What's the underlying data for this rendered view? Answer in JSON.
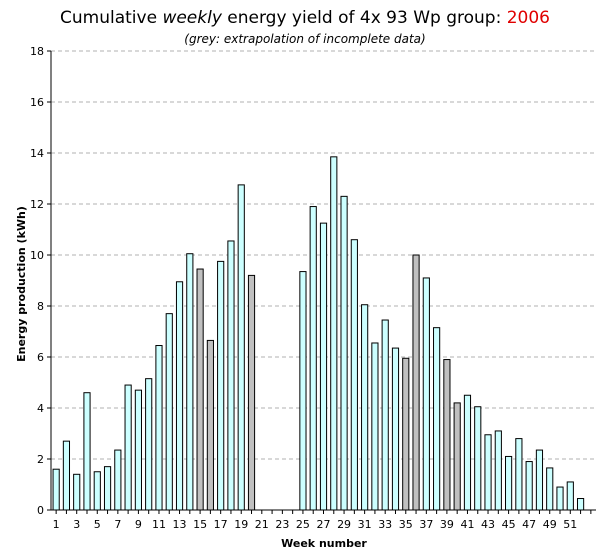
{
  "chart_data": {
    "type": "bar",
    "title_parts": {
      "prefix": "Cumulative",
      "emphasis": "weekly",
      "suffix": "energy yield of 4x 93 Wp group:",
      "year": "2006"
    },
    "subtitle": "(grey: extrapolation of incomplete data)",
    "xlabel": "Week number",
    "ylabel": "Energy production (kWh)",
    "ylim": [
      0,
      18
    ],
    "yticks": [
      0,
      2,
      4,
      6,
      8,
      10,
      12,
      14,
      16,
      18
    ],
    "xtick_labels": [
      "1",
      "3",
      "5",
      "7",
      "9",
      "11",
      "13",
      "15",
      "17",
      "19",
      "21",
      "23",
      "25",
      "27",
      "29",
      "31",
      "33",
      "35",
      "37",
      "39",
      "41",
      "43",
      "45",
      "47",
      "49",
      "51"
    ],
    "grid": true,
    "colors": {
      "complete": "#ccffff",
      "extrapolated": "#c0c0c0",
      "bar_edge": "#000000",
      "grid": "#b0b0b0",
      "year": "#e00000"
    },
    "categories": [
      1,
      2,
      3,
      4,
      5,
      6,
      7,
      8,
      9,
      10,
      11,
      12,
      13,
      14,
      15,
      16,
      17,
      18,
      19,
      20,
      21,
      22,
      23,
      24,
      25,
      26,
      27,
      28,
      29,
      30,
      31,
      32,
      33,
      34,
      35,
      36,
      37,
      38,
      39,
      40,
      41,
      42,
      43,
      44,
      45,
      46,
      47,
      48,
      49,
      50,
      51,
      52,
      53
    ],
    "values": [
      1.6,
      2.7,
      1.4,
      4.6,
      1.5,
      1.7,
      2.35,
      4.9,
      4.7,
      5.15,
      6.45,
      7.7,
      8.95,
      10.05,
      9.45,
      6.65,
      9.75,
      10.55,
      12.75,
      9.2,
      0,
      0,
      0,
      0,
      9.35,
      11.9,
      11.25,
      13.85,
      12.3,
      10.6,
      8.05,
      6.55,
      7.45,
      6.35,
      5.95,
      10.0,
      9.1,
      7.15,
      5.9,
      4.2,
      4.5,
      4.05,
      2.95,
      3.1,
      2.1,
      2.8,
      1.9,
      2.35,
      1.65,
      0.9,
      1.1,
      0.45,
      0
    ],
    "extrapolated": [
      false,
      false,
      false,
      false,
      false,
      false,
      false,
      false,
      false,
      false,
      false,
      false,
      false,
      false,
      true,
      true,
      false,
      false,
      false,
      true,
      false,
      false,
      false,
      false,
      false,
      false,
      false,
      false,
      false,
      false,
      false,
      false,
      false,
      false,
      true,
      true,
      false,
      false,
      true,
      true,
      false,
      false,
      false,
      false,
      false,
      false,
      false,
      false,
      false,
      false,
      false,
      false,
      false
    ]
  }
}
